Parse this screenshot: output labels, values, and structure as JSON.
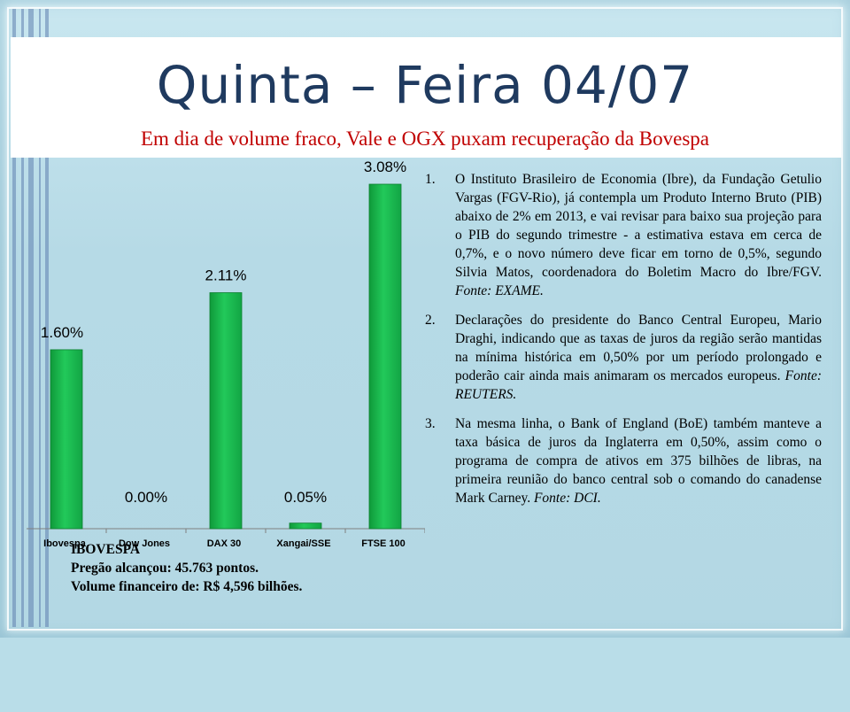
{
  "title": "Quinta – Feira 04/07",
  "subtitle": "Em dia de volume fraco, Vale e OGX puxam recuperação da Bovespa",
  "colors": {
    "bar": "#17b84a",
    "title": "#1f3a5f",
    "subtitle": "#c00000"
  },
  "chart_data": {
    "type": "bar",
    "categories": [
      "Ibovespa",
      "Dow Jones",
      "DAX 30",
      "Xangai/SSE",
      "FTSE 100"
    ],
    "values": [
      1.6,
      0.0,
      2.11,
      0.05,
      3.08
    ],
    "data_labels": [
      "1.60%",
      "0.00%",
      "2.11%",
      "0.05%",
      "3.08%"
    ],
    "title": "",
    "xlabel": "",
    "ylabel": "",
    "ylim": [
      0,
      3.08
    ],
    "grid": false,
    "legend": "none"
  },
  "notes": [
    {
      "number": "1.",
      "text": "O Instituto Brasileiro de Economia (Ibre), da Fundação Getulio Vargas (FGV-Rio), já contempla um Produto Interno Bruto (PIB) abaixo de 2% em 2013, e vai revisar para baixo sua projeção para o PIB do segundo trimestre - a estimativa estava em cerca de 0,7%, e o novo número deve ficar em torno de 0,5%, segundo Silvia Matos, coordenadora do Boletim Macro do Ibre/FGV.",
      "source": "Fonte: EXAME."
    },
    {
      "number": "2.",
      "text": "Declarações do presidente do Banco Central Europeu, Mario Draghi, indicando que as taxas de juros da região serão mantidas na mínima histórica em 0,50% por um período prolongado e poderão cair ainda mais animaram os mercados europeus.",
      "source": "Fonte: REUTERS."
    },
    {
      "number": "3.",
      "text": "Na mesma linha, o Bank of England (BoE) também manteve a taxa básica de juros da Inglaterra em 0,50%, assim como o programa de compra de ativos em 375 bilhões de libras, na primeira reunião do banco central sob o comando do canadense Mark Carney.",
      "source": "Fonte: DCI."
    }
  ],
  "ibovespa": {
    "heading": "IBOVESPA",
    "line1": "Pregão alcançou: 45.763 pontos.",
    "line2": "Volume financeiro de: R$ 4,596 bilhões."
  }
}
